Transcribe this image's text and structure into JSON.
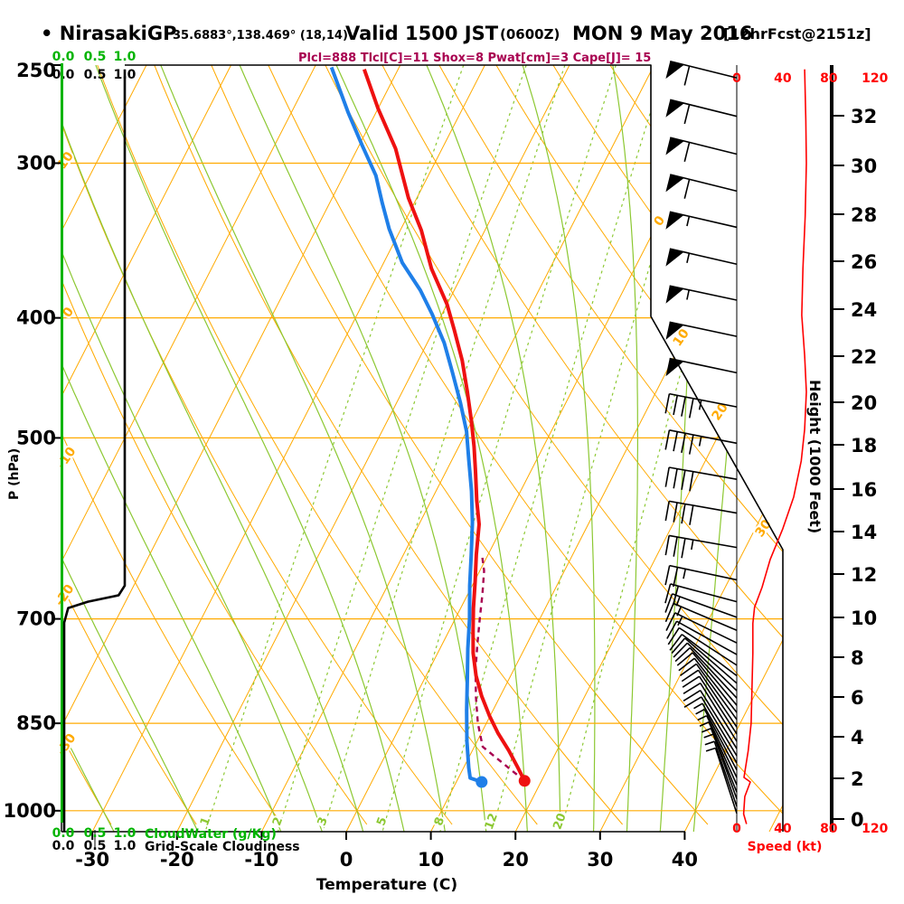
{
  "title": {
    "station": "• NirasakiGP",
    "coords": "35.6883°,138.469° (18,14)",
    "valid": "Valid 1500 JST",
    "zulu": "(0600Z)",
    "date": "MON 9 May 2016",
    "fcst": "[12hrFcst@2151z]"
  },
  "stats_line": "Plcl=888 Tlcl[C]=11 Shox=8 Pwat[cm]=3 Cape[J]= 15",
  "colors": {
    "isotherm_grid": "#FFAA00",
    "moist_grid": "#8CC832",
    "cloudwater": "#00B400",
    "temperature": "#EE1111",
    "dewpoint": "#1F7FE8",
    "parcel": "#A80050",
    "stats": "#A80050",
    "speed": "#FF0000",
    "barbs": "#000000"
  },
  "axes": {
    "pressure": {
      "label": "P (hPa)",
      "ticks": [
        250,
        300,
        400,
        500,
        700,
        850,
        1000
      ]
    },
    "temperature": {
      "label": "Temperature (C)",
      "ticks": [
        -30,
        -20,
        -10,
        0,
        10,
        20,
        30,
        40
      ]
    },
    "height": {
      "label": "Height (1000 Feet)",
      "ticks": [
        [
          32,
          128
        ],
        [
          30,
          183
        ],
        [
          28,
          237
        ],
        [
          26,
          289
        ],
        [
          24,
          342
        ],
        [
          22,
          394
        ],
        [
          20,
          445
        ],
        [
          18,
          492
        ],
        [
          16,
          541
        ],
        [
          14,
          588
        ],
        [
          12,
          635
        ],
        [
          10,
          683
        ],
        [
          8,
          727
        ],
        [
          6,
          771
        ],
        [
          4,
          815
        ],
        [
          2,
          861
        ],
        [
          0,
          906
        ]
      ]
    },
    "speed": {
      "label": "Speed (kt)",
      "ticks": [
        0,
        40,
        80,
        120
      ]
    },
    "cloudwater": {
      "label": "CloudWater (g/Kg)",
      "scale": [
        "0.0",
        "0.5",
        "1.0"
      ]
    },
    "cloudiness": {
      "label": "Grid-Scale Cloudiness",
      "scale": [
        "0.0",
        "0.5",
        "1.0"
      ]
    }
  },
  "grid": {
    "isotherms_c": {
      "start": -110,
      "end": 50,
      "step": 10
    },
    "dry_adiabats_c": {
      "start": -40,
      "end": 140,
      "step": 10
    },
    "moist_adiabats_c": [
      -40,
      -30,
      -20,
      -10,
      -5,
      0,
      5,
      10,
      15,
      20,
      24,
      28,
      32,
      36,
      40
    ],
    "mixing_ratio_g_kg": [
      1,
      2,
      3,
      5,
      8,
      12,
      20
    ],
    "dry_adiabat_labels": [
      [
        10,
        76,
        180
      ],
      [
        0,
        79,
        348
      ],
      [
        -10,
        77,
        509
      ],
      [
        -20,
        75,
        661
      ],
      [
        -30,
        77,
        826
      ]
    ],
    "isotherm_labels": [
      [
        0,
        733,
        247
      ],
      [
        10,
        757,
        376
      ],
      [
        20,
        800,
        458
      ],
      [
        30,
        848,
        587
      ]
    ]
  },
  "chart_data": {
    "type": "skewt-log-p sounding",
    "pressure_range_hpa": [
      250,
      1040
    ],
    "temperature_c": [
      [
        252,
        -44
      ],
      [
        271,
        -40
      ],
      [
        292,
        -35.5
      ],
      [
        320,
        -31
      ],
      [
        340,
        -27.5
      ],
      [
        365,
        -24
      ],
      [
        390,
        -20
      ],
      [
        409,
        -17.6
      ],
      [
        433,
        -14.8
      ],
      [
        459,
        -12.3
      ],
      [
        484,
        -10.1
      ],
      [
        508,
        -8.2
      ],
      [
        534,
        -6.4
      ],
      [
        562,
        -4.6
      ],
      [
        587,
        -2.9
      ],
      [
        621,
        -1.4
      ],
      [
        653,
        0.1
      ],
      [
        686,
        1.5
      ],
      [
        715,
        2.8
      ],
      [
        746,
        4.2
      ],
      [
        778,
        5.9
      ],
      [
        808,
        7.8
      ],
      [
        838,
        9.9
      ],
      [
        866,
        12
      ],
      [
        894,
        14.3
      ],
      [
        923,
        16.4
      ],
      [
        946,
        18
      ]
    ],
    "dewpoint_c": [
      [
        251,
        -48
      ],
      [
        273,
        -43.3
      ],
      [
        290,
        -39.7
      ],
      [
        307,
        -36.2
      ],
      [
        323,
        -33.8
      ],
      [
        339,
        -31.4
      ],
      [
        361,
        -27.8
      ],
      [
        380,
        -24
      ],
      [
        397,
        -21.2
      ],
      [
        419,
        -18
      ],
      [
        443,
        -15.2
      ],
      [
        468,
        -12.5
      ],
      [
        494,
        -10
      ],
      [
        521,
        -8
      ],
      [
        552,
        -5.8
      ],
      [
        585,
        -3.8
      ],
      [
        621,
        -2
      ],
      [
        658,
        -0.3
      ],
      [
        700,
        1.7
      ],
      [
        740,
        3.3
      ],
      [
        781,
        5
      ],
      [
        830,
        6.9
      ],
      [
        879,
        8.8
      ],
      [
        923,
        10.6
      ],
      [
        941,
        11.4
      ],
      [
        948,
        13
      ]
    ],
    "parcel_c": [
      [
        946,
        18
      ],
      [
        888,
        11
      ],
      [
        850,
        9
      ],
      [
        810,
        7.2
      ],
      [
        770,
        5.5
      ],
      [
        735,
        4.2
      ],
      [
        700,
        2.9
      ],
      [
        668,
        1.7
      ],
      [
        640,
        0.5
      ],
      [
        620,
        -0.8
      ]
    ],
    "cloudiness_frac": [
      [
        252,
        1
      ],
      [
        658,
        1
      ],
      [
        670,
        0.9
      ],
      [
        678,
        0.4
      ],
      [
        686,
        0.08
      ],
      [
        705,
        0.015
      ],
      [
        1040,
        0.015
      ]
    ],
    "cloudwater_g_kg": [
      [
        250,
        0
      ],
      [
        1013,
        0
      ]
    ],
    "wind_speed_kt": [
      [
        252,
        59
      ],
      [
        277,
        60
      ],
      [
        300,
        60.5
      ],
      [
        331,
        59.5
      ],
      [
        365,
        57.5
      ],
      [
        398,
        56.5
      ],
      [
        429,
        59
      ],
      [
        459,
        60.5
      ],
      [
        492,
        59
      ],
      [
        522,
        56
      ],
      [
        558,
        49.5
      ],
      [
        592,
        40
      ],
      [
        627,
        29
      ],
      [
        660,
        22
      ],
      [
        685,
        15.5
      ],
      [
        706,
        14
      ],
      [
        746,
        14
      ],
      [
        798,
        13.2
      ],
      [
        850,
        12.5
      ],
      [
        894,
        10
      ],
      [
        940,
        6.3
      ],
      [
        948,
        11.8
      ],
      [
        974,
        7
      ],
      [
        1006,
        6
      ],
      [
        1025,
        8.5
      ]
    ],
    "wind_barbs": [
      [
        256,
        58,
        14
      ],
      [
        275,
        58,
        14
      ],
      [
        295,
        60,
        14
      ],
      [
        316,
        60,
        14
      ],
      [
        338,
        57,
        13
      ],
      [
        362,
        55,
        13
      ],
      [
        387,
        54,
        12
      ],
      [
        414,
        52,
        12
      ],
      [
        443,
        48,
        12
      ],
      [
        472,
        46,
        11
      ],
      [
        505,
        45,
        11
      ],
      [
        540,
        42,
        10
      ],
      [
        575,
        38,
        10
      ],
      [
        613,
        33,
        10
      ],
      [
        651,
        25,
        12
      ],
      [
        678,
        18,
        15
      ],
      [
        698,
        14,
        20
      ],
      [
        715,
        13,
        23
      ],
      [
        732,
        13,
        26
      ],
      [
        748,
        12,
        29
      ],
      [
        763,
        12,
        33
      ],
      [
        778,
        12,
        37
      ],
      [
        789,
        12,
        41
      ],
      [
        800,
        11,
        44
      ],
      [
        811,
        11,
        47
      ],
      [
        822,
        10,
        50
      ],
      [
        833,
        10,
        52
      ],
      [
        844,
        10,
        54
      ],
      [
        856,
        10,
        56
      ],
      [
        867,
        9,
        57
      ],
      [
        879,
        9,
        58
      ],
      [
        891,
        8,
        58
      ],
      [
        903,
        8,
        59
      ],
      [
        915,
        7,
        60
      ],
      [
        927,
        7,
        62
      ],
      [
        940,
        6,
        64
      ],
      [
        953,
        6,
        66
      ],
      [
        966,
        5,
        68
      ],
      [
        978,
        5,
        70
      ],
      [
        992,
        4,
        71
      ],
      [
        1005,
        4,
        72
      ]
    ]
  }
}
